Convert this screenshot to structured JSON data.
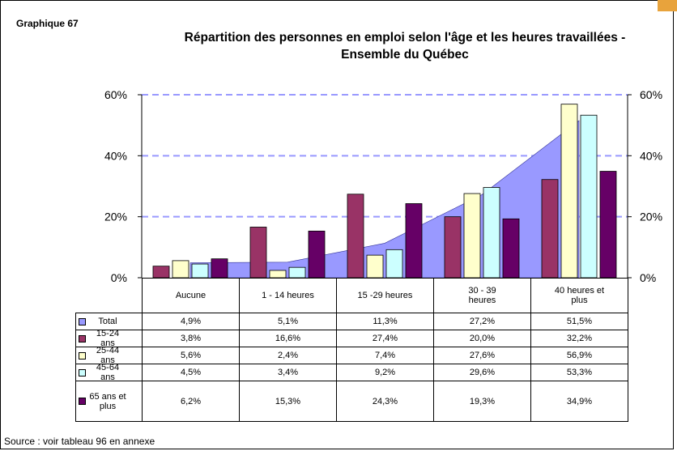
{
  "chart_data": {
    "type": "bar",
    "label": "Graphique 67",
    "title": "Répartition des personnes en emploi selon l'âge et les heures travaillées - Ensemble du Québec",
    "categories": [
      "Aucune",
      "1 - 14 heures",
      "15 -29 heures",
      "30 - 39 heures",
      "40 heures et plus"
    ],
    "series": [
      {
        "name": "Total",
        "type": "area",
        "color": "#9999ff",
        "values": [
          4.9,
          5.1,
          11.3,
          27.2,
          51.5
        ],
        "value_labels": [
          "4,9%",
          "5,1%",
          "11,3%",
          "27,2%",
          "51,5%"
        ]
      },
      {
        "name": "15-24 ans",
        "color": "#993366",
        "values": [
          3.8,
          16.6,
          27.4,
          20.0,
          32.2
        ],
        "value_labels": [
          "3,8%",
          "16,6%",
          "27,4%",
          "20,0%",
          "32,2%"
        ]
      },
      {
        "name": "25-44 ans",
        "color": "#ffffcc",
        "values": [
          5.6,
          2.4,
          7.4,
          27.6,
          56.9
        ],
        "value_labels": [
          "5,6%",
          "2,4%",
          "7,4%",
          "27,6%",
          "56,9%"
        ]
      },
      {
        "name": "45-64 ans",
        "color": "#ccffff",
        "values": [
          4.5,
          3.4,
          9.2,
          29.6,
          53.3
        ],
        "value_labels": [
          "4,5%",
          "3,4%",
          "9,2%",
          "29,6%",
          "53,3%"
        ]
      },
      {
        "name": "65 ans et plus",
        "color": "#660066",
        "values": [
          6.2,
          15.3,
          24.3,
          19.3,
          34.9
        ],
        "value_labels": [
          "6,2%",
          "15,3%",
          "24,3%",
          "19,3%",
          "34,9%"
        ]
      }
    ],
    "ylim": [
      0,
      60
    ],
    "yticks": [
      {
        "value": 0,
        "label": "0%"
      },
      {
        "value": 20,
        "label": "20%"
      },
      {
        "value": 40,
        "label": "40%"
      },
      {
        "value": 60,
        "label": "60%"
      }
    ],
    "y2lim": [
      0,
      60
    ],
    "y2ticks": [
      {
        "value": 0,
        "label": "0%"
      },
      {
        "value": 20,
        "label": "20%"
      },
      {
        "value": 40,
        "label": "40%"
      },
      {
        "value": 60,
        "label": "60%"
      }
    ],
    "grid": true,
    "grid_color": "#9999ff",
    "source": "Source : voir tableau 96 en annexe"
  }
}
